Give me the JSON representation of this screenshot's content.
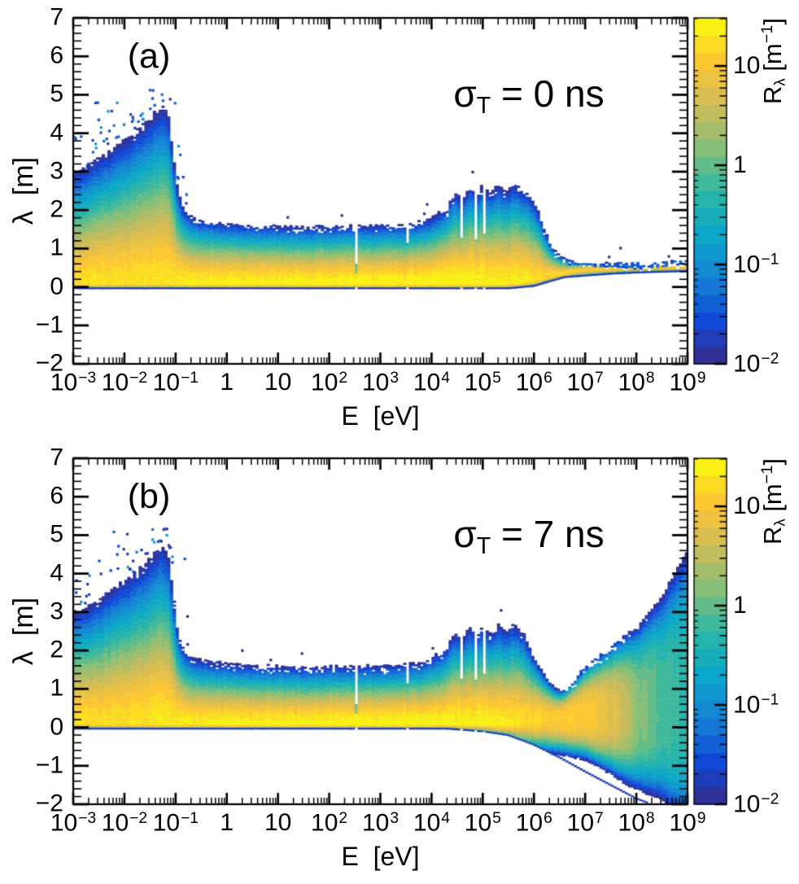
{
  "panels": [
    {
      "label": "(a)",
      "annotation": {
        "symbol": "σ",
        "sub": "T",
        "rest": " = 0 ns"
      }
    },
    {
      "label": "(b)",
      "annotation": {
        "symbol": "σ",
        "sub": "T",
        "rest": " = 7 ns"
      }
    }
  ],
  "axes": {
    "x_title": "E  [eV]",
    "y_title_symbol": "λ",
    "y_title_rest": "  [m]",
    "x_ticks": [
      {
        "m": "10",
        "e": "−3"
      },
      {
        "m": "10",
        "e": "−2"
      },
      {
        "m": "10",
        "e": "−1"
      },
      {
        "m": "1",
        "e": ""
      },
      {
        "m": "10",
        "e": ""
      },
      {
        "m": "10",
        "e": "2"
      },
      {
        "m": "10",
        "e": "3"
      },
      {
        "m": "10",
        "e": "4"
      },
      {
        "m": "10",
        "e": "5"
      },
      {
        "m": "10",
        "e": "6"
      },
      {
        "m": "10",
        "e": "7"
      },
      {
        "m": "10",
        "e": "8"
      },
      {
        "m": "10",
        "e": "9"
      }
    ],
    "y_ticks": [
      "7",
      "6",
      "5",
      "4",
      "3",
      "2",
      "1",
      "0",
      "−1",
      "−2"
    ]
  },
  "colorbar": {
    "title_main": "R",
    "title_sub": "λ",
    "title_mid": " [m",
    "title_sup": "−1",
    "title_end": "]",
    "ticks": [
      {
        "m": "10",
        "e": "",
        "v": 10
      },
      {
        "m": "1",
        "e": "",
        "v": 1
      },
      {
        "m": "10",
        "e": "−1",
        "v": 0.1
      },
      {
        "m": "10",
        "e": "−2",
        "v": 0.01
      }
    ]
  },
  "chart_data": {
    "type": "heatmap",
    "description": "Two ROOT-style 2D histograms of emission distance λ [m] versus energy E [eV]; color gives rate R_λ [m^-1] on a log scale. Panel (a): no timing smearing (σ_T = 0 ns); panel (b): σ_T = 7 ns smearing, which fans the distribution out above ~10^6 eV.",
    "x_axis": {
      "label": "E [eV]",
      "scale": "log",
      "min": 0.001,
      "max": 1000000000.0
    },
    "y_axis": {
      "label": "λ [m]",
      "scale": "linear",
      "min": -2,
      "max": 7
    },
    "z_axis": {
      "label": "R_λ [m^-1]",
      "scale": "log",
      "min": 0.01,
      "max": 30.5
    },
    "contour_levels": 20,
    "palette": [
      "#352a87",
      "#1049d8",
      "#1582d4",
      "#0ba7ca",
      "#2cb7a4",
      "#86bf77",
      "#d0bb58",
      "#fdc732",
      "#f8fa0d"
    ],
    "panels": [
      {
        "id": "a",
        "annotation": "σ_T = 0 ns",
        "seed": 7,
        "upper_envelope": [
          [
            -3,
            3.1
          ],
          [
            -2.7,
            3.3
          ],
          [
            -2.4,
            3.6
          ],
          [
            -2.1,
            3.9
          ],
          [
            -1.8,
            4.2
          ],
          [
            -1.5,
            4.55
          ],
          [
            -1.35,
            4.75
          ],
          [
            -1.25,
            4.85
          ],
          [
            -1.15,
            4.7
          ],
          [
            -1.05,
            3.6
          ],
          [
            -0.95,
            2.5
          ],
          [
            -0.85,
            2.1
          ],
          [
            -0.7,
            1.9
          ],
          [
            -0.5,
            1.8
          ],
          [
            -0.2,
            1.72
          ],
          [
            0.5,
            1.65
          ],
          [
            1.5,
            1.6
          ],
          [
            2.5,
            1.62
          ],
          [
            3.5,
            1.65
          ],
          [
            3.8,
            1.72
          ],
          [
            4.1,
            1.9
          ],
          [
            4.3,
            2.1
          ],
          [
            4.45,
            2.5
          ],
          [
            4.6,
            2.3
          ],
          [
            4.75,
            2.65
          ],
          [
            4.9,
            2.45
          ],
          [
            5,
            2.7
          ],
          [
            5.15,
            2.5
          ],
          [
            5.3,
            2.72
          ],
          [
            5.45,
            2.55
          ],
          [
            5.6,
            2.78
          ],
          [
            5.75,
            2.6
          ],
          [
            5.9,
            2.5
          ],
          [
            6,
            2.3
          ],
          [
            6.1,
            2
          ],
          [
            6.2,
            1.6
          ],
          [
            6.35,
            1.1
          ],
          [
            6.5,
            0.85
          ],
          [
            6.7,
            0.72
          ],
          [
            7,
            0.66
          ],
          [
            7.5,
            0.62
          ],
          [
            8,
            0.62
          ],
          [
            8.5,
            0.64
          ],
          [
            9,
            0.67
          ]
        ],
        "lower_envelope": [
          [
            -3,
            -0.03
          ],
          [
            5.5,
            -0.03
          ],
          [
            6,
            0.03
          ],
          [
            6.3,
            0.15
          ],
          [
            6.6,
            0.26
          ],
          [
            7,
            0.3
          ],
          [
            7.5,
            0.35
          ],
          [
            8,
            0.38
          ],
          [
            8.5,
            0.4
          ],
          [
            9,
            0.42
          ]
        ],
        "ridge_lambda": [
          [
            -3,
            0.08
          ],
          [
            5.5,
            0.08
          ],
          [
            6,
            0.15
          ],
          [
            6.5,
            0.33
          ],
          [
            7,
            0.45
          ],
          [
            8,
            0.5
          ],
          [
            9,
            0.53
          ]
        ],
        "ridge_R": [
          [
            -3,
            18
          ],
          [
            -1.5,
            20
          ],
          [
            0,
            27
          ],
          [
            4,
            30
          ],
          [
            5.5,
            24
          ],
          [
            6.5,
            16
          ],
          [
            7.5,
            13
          ],
          [
            9,
            12
          ]
        ],
        "profile_exponent": [
          [
            -3,
            1.5
          ],
          [
            9,
            1.5
          ]
        ],
        "spread_up": [
          [
            -3,
            0.25
          ],
          [
            9,
            0.25
          ]
        ],
        "spread_dn": [
          [
            -3,
            0.42
          ],
          [
            9,
            0.42
          ]
        ],
        "gaps": [
          [
            2.52,
            0.04,
            0.6
          ],
          [
            3.32,
            0.025,
            1.05
          ],
          [
            3.52,
            0.025,
            1.15
          ],
          [
            4.56,
            0.05,
            1.3
          ],
          [
            4.84,
            0.06,
            1.25
          ],
          [
            5.02,
            0.05,
            1.4
          ]
        ],
        "dark_streaks": [
          [
            2.52,
            0.05,
            0.35,
            0.15
          ]
        ]
      },
      {
        "id": "b",
        "annotation": "σ_T = 7 ns",
        "seed": 13,
        "upper_envelope": [
          [
            -3,
            3.1
          ],
          [
            -2.7,
            3.3
          ],
          [
            -2.4,
            3.6
          ],
          [
            -2.1,
            3.9
          ],
          [
            -1.8,
            4.2
          ],
          [
            -1.5,
            4.55
          ],
          [
            -1.35,
            4.75
          ],
          [
            -1.25,
            4.85
          ],
          [
            -1.15,
            4.7
          ],
          [
            -1.05,
            3.6
          ],
          [
            -0.95,
            2.5
          ],
          [
            -0.85,
            2.1
          ],
          [
            -0.7,
            1.9
          ],
          [
            -0.5,
            1.8
          ],
          [
            -0.2,
            1.72
          ],
          [
            0.5,
            1.65
          ],
          [
            1.5,
            1.6
          ],
          [
            2.5,
            1.62
          ],
          [
            3.5,
            1.65
          ],
          [
            3.8,
            1.72
          ],
          [
            4.1,
            1.9
          ],
          [
            4.3,
            2.1
          ],
          [
            4.45,
            2.5
          ],
          [
            4.6,
            2.3
          ],
          [
            4.75,
            2.65
          ],
          [
            4.9,
            2.45
          ],
          [
            5,
            2.7
          ],
          [
            5.15,
            2.5
          ],
          [
            5.3,
            2.72
          ],
          [
            5.45,
            2.55
          ],
          [
            5.6,
            2.78
          ],
          [
            5.75,
            2.6
          ],
          [
            5.9,
            2.5
          ],
          [
            6,
            2.3
          ],
          [
            6.1,
            1.95
          ],
          [
            6.25,
            1.5
          ],
          [
            6.4,
            1.15
          ],
          [
            6.55,
            1.02
          ],
          [
            6.7,
            1.15
          ],
          [
            7,
            1.6
          ],
          [
            7.5,
            2.1
          ],
          [
            8,
            2.65
          ],
          [
            8.5,
            3.6
          ],
          [
            9,
            5.05
          ]
        ],
        "lower_envelope": [
          [
            -3,
            -0.03
          ],
          [
            4.3,
            -0.03
          ],
          [
            5,
            -0.1
          ],
          [
            5.5,
            -0.2
          ],
          [
            6,
            -0.45
          ],
          [
            6.5,
            -0.78
          ],
          [
            7,
            -1.15
          ],
          [
            7.5,
            -1.5
          ],
          [
            8,
            -1.85
          ],
          [
            8.4,
            -2.05
          ],
          [
            9,
            -2.7
          ]
        ],
        "ridge_lambda": [
          [
            -3,
            0.08
          ],
          [
            5.5,
            0.08
          ],
          [
            6.2,
            0.2
          ],
          [
            6.8,
            0.28
          ],
          [
            7.5,
            0.32
          ],
          [
            8.2,
            0.38
          ],
          [
            9,
            0.45
          ]
        ],
        "ridge_R": [
          [
            -3,
            18
          ],
          [
            -1.5,
            20
          ],
          [
            0,
            27
          ],
          [
            4,
            30
          ],
          [
            5.5,
            22
          ],
          [
            6.3,
            14
          ],
          [
            7,
            12
          ],
          [
            7.5,
            6
          ],
          [
            8,
            1.6
          ],
          [
            8.5,
            0.7
          ],
          [
            9,
            0.45
          ]
        ],
        "profile_exponent": [
          [
            -3,
            1.5
          ],
          [
            5.8,
            1.5
          ],
          [
            6.6,
            2.6
          ],
          [
            7.5,
            3.2
          ],
          [
            9,
            3.5
          ]
        ],
        "spread_up": [
          [
            -3,
            0.25
          ],
          [
            6,
            0.25
          ],
          [
            6.8,
            0.5
          ],
          [
            7.5,
            0.58
          ],
          [
            9,
            0.62
          ]
        ],
        "spread_dn": [
          [
            -3,
            0.42
          ],
          [
            5,
            0.42
          ],
          [
            6,
            0.45
          ],
          [
            7,
            0.4
          ],
          [
            8,
            0.55
          ],
          [
            9,
            0.62
          ]
        ],
        "gaps": [
          [
            2.52,
            0.04,
            0.6
          ],
          [
            3.32,
            0.025,
            1.05
          ],
          [
            3.52,
            0.025,
            1.15
          ],
          [
            4.56,
            0.05,
            1.3
          ],
          [
            4.84,
            0.06,
            1.25
          ],
          [
            5.02,
            0.05,
            1.4
          ]
        ],
        "dark_streaks": [
          [
            2.52,
            0.05,
            0.35,
            0.15
          ]
        ]
      }
    ]
  }
}
